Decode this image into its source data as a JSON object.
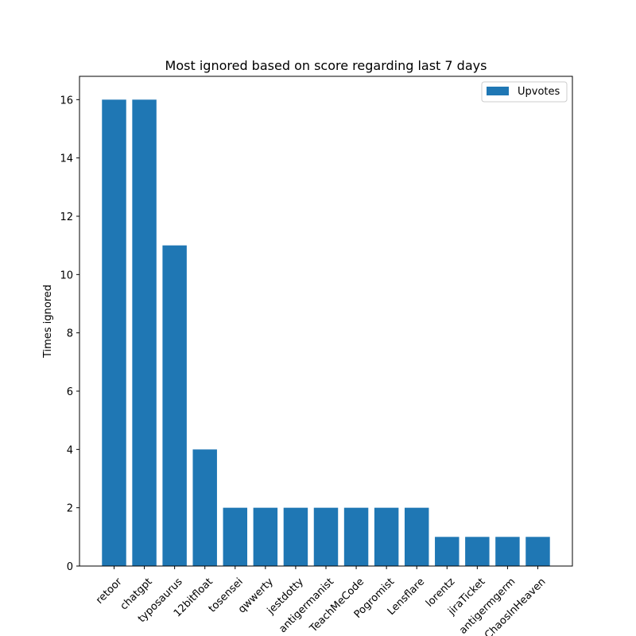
{
  "chart_data": {
    "type": "bar",
    "title": "Most ignored based on score regarding last 7 days",
    "xlabel": "",
    "ylabel": "Times ignored",
    "categories": [
      "retoor",
      "chatgpt",
      "typosaurus",
      "12bitfloat",
      "tosensei",
      "qwwerty",
      "jestdotty",
      "antigermanist",
      "TeachMeCode",
      "Pogromist",
      "Lensflare",
      "lorentz",
      "jiraTicket",
      "antigermgerm",
      "ChaosInHeaven"
    ],
    "series": [
      {
        "name": "Upvotes",
        "values": [
          16,
          16,
          11,
          4,
          2,
          2,
          2,
          2,
          2,
          2,
          2,
          1,
          1,
          1,
          1
        ],
        "color": "#1f77b4"
      }
    ],
    "ylim": [
      0,
      16.8
    ],
    "yticks": [
      0,
      2,
      4,
      6,
      8,
      10,
      12,
      14,
      16
    ],
    "grid": false,
    "legend_position": "top-right",
    "x_tick_rotation": 45
  }
}
